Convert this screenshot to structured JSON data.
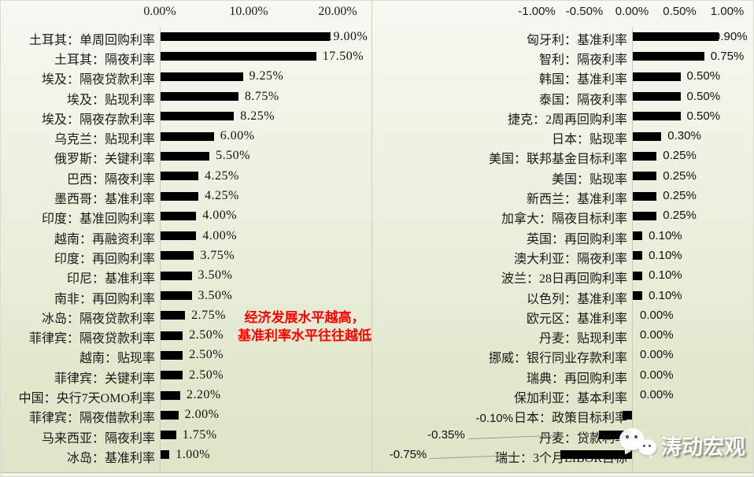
{
  "annotation": {
    "line1": "经济发展水平越高，",
    "line2": "基准利率水平往往越低",
    "color": "#ff0000"
  },
  "watermark": {
    "text": "涛动宏观"
  },
  "colors": {
    "bar": "#000000",
    "background_top": "#f7f8f2",
    "background_bottom": "#dde4c8",
    "annotation_red": "#ff0000"
  },
  "chart_data": [
    {
      "type": "bar",
      "orientation": "horizontal",
      "title": "",
      "xlabel": "",
      "ylabel": "",
      "axis": {
        "position": "top",
        "ticks": [
          "0.00%",
          "10.00%",
          "20.00%"
        ],
        "tick_values": [
          0,
          10,
          20
        ],
        "range": [
          0,
          20
        ]
      },
      "grid": false,
      "legend": false,
      "rows": [
        {
          "label": "土耳其：单周回购利率",
          "value": 19.0,
          "value_label": "19.00%"
        },
        {
          "label": "土耳其：隔夜利率",
          "value": 17.5,
          "value_label": "17.50%"
        },
        {
          "label": "埃及：隔夜贷款利率",
          "value": 9.25,
          "value_label": "9.25%"
        },
        {
          "label": "埃及：贴现利率",
          "value": 8.75,
          "value_label": "8.75%"
        },
        {
          "label": "埃及：隔夜存款利率",
          "value": 8.25,
          "value_label": "8.25%"
        },
        {
          "label": "乌克兰：贴现利率",
          "value": 6.0,
          "value_label": "6.00%"
        },
        {
          "label": "俄罗斯：关键利率",
          "value": 5.5,
          "value_label": "5.50%"
        },
        {
          "label": "巴西：隔夜利率",
          "value": 4.25,
          "value_label": "4.25%"
        },
        {
          "label": "墨西哥：基准利率",
          "value": 4.25,
          "value_label": "4.25%"
        },
        {
          "label": "印度：基准回购利率",
          "value": 4.0,
          "value_label": "4.00%"
        },
        {
          "label": "越南：再融资利率",
          "value": 4.0,
          "value_label": "4.00%"
        },
        {
          "label": "印度：再回购利率",
          "value": 3.75,
          "value_label": "3.75%"
        },
        {
          "label": "印尼：基准利率",
          "value": 3.5,
          "value_label": "3.50%"
        },
        {
          "label": "南非：再回购利率",
          "value": 3.5,
          "value_label": "3.50%"
        },
        {
          "label": "冰岛：隔夜贷款利率",
          "value": 2.75,
          "value_label": "2.75%"
        },
        {
          "label": "菲律宾：隔夜贷款利率",
          "value": 2.5,
          "value_label": "2.50%"
        },
        {
          "label": "越南：贴现率",
          "value": 2.5,
          "value_label": "2.50%"
        },
        {
          "label": "菲律宾：关键利率",
          "value": 2.5,
          "value_label": "2.50%"
        },
        {
          "label": "中国：央行7天OMO利率",
          "value": 2.2,
          "value_label": "2.20%"
        },
        {
          "label": "菲律宾：隔夜借款利率",
          "value": 2.0,
          "value_label": "2.00%"
        },
        {
          "label": "马来西亚：隔夜利率",
          "value": 1.75,
          "value_label": "1.75%"
        },
        {
          "label": "冰岛：基准利率",
          "value": 1.0,
          "value_label": "1.00%"
        }
      ]
    },
    {
      "type": "bar",
      "orientation": "horizontal",
      "title": "",
      "xlabel": "",
      "ylabel": "",
      "axis": {
        "position": "top",
        "ticks": [
          "-1.00%",
          "-0.50%",
          "0.00%",
          "0.50%",
          "1.00%"
        ],
        "tick_values": [
          -1,
          -0.5,
          0,
          0.5,
          1
        ],
        "range": [
          -1,
          1
        ]
      },
      "grid": false,
      "legend": false,
      "rows": [
        {
          "label": "匈牙利：基准利率",
          "value": 0.9,
          "value_label": "0.90%"
        },
        {
          "label": "智利：隔夜利率",
          "value": 0.75,
          "value_label": "0.75%"
        },
        {
          "label": "韩国：基准利率",
          "value": 0.5,
          "value_label": "0.50%"
        },
        {
          "label": "泰国：隔夜利率",
          "value": 0.5,
          "value_label": "0.50%"
        },
        {
          "label": "捷克：2周再回购利率",
          "value": 0.5,
          "value_label": "0.50%"
        },
        {
          "label": "日本：贴现率",
          "value": 0.3,
          "value_label": "0.30%"
        },
        {
          "label": "美国：联邦基金目标利率",
          "value": 0.25,
          "value_label": "0.25%"
        },
        {
          "label": "美国：贴现率",
          "value": 0.25,
          "value_label": "0.25%"
        },
        {
          "label": "新西兰：基准利率",
          "value": 0.25,
          "value_label": "0.25%"
        },
        {
          "label": "加拿大：隔夜目标利率",
          "value": 0.25,
          "value_label": "0.25%"
        },
        {
          "label": "英国：再回购利率",
          "value": 0.1,
          "value_label": "0.10%"
        },
        {
          "label": "澳大利亚：隔夜利率",
          "value": 0.1,
          "value_label": "0.10%"
        },
        {
          "label": "波兰：28日再回购利率",
          "value": 0.1,
          "value_label": "0.10%"
        },
        {
          "label": "以色列：基准利率",
          "value": 0.1,
          "value_label": "0.10%"
        },
        {
          "label": "欧元区：基准利率",
          "value": 0.0,
          "value_label": "0.00%"
        },
        {
          "label": "丹麦：贴现利率",
          "value": 0.0,
          "value_label": "0.00%"
        },
        {
          "label": "挪威：银行同业存款利率",
          "value": 0.0,
          "value_label": "0.00%"
        },
        {
          "label": "瑞典：再回购利率",
          "value": 0.0,
          "value_label": "0.00%"
        },
        {
          "label": "保加利亚：基本利率",
          "value": 0.0,
          "value_label": "0.00%"
        },
        {
          "label": "日本：政策目标利率",
          "value": -0.1,
          "value_label": "-0.10%",
          "label_style": "inline-left"
        },
        {
          "label": "丹麦：贷款利率",
          "value": -0.35,
          "value_label": "-0.35%",
          "label_style": "leader"
        },
        {
          "label": "瑞士：3个月LIBOR目标",
          "value": -0.75,
          "value_label": "-0.75%",
          "label_style": "leader"
        }
      ]
    }
  ]
}
